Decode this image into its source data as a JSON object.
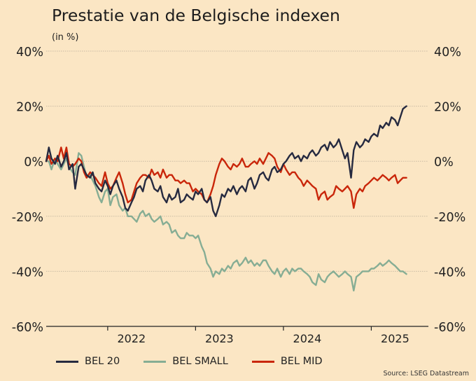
{
  "header": {
    "title": "Prestatie van de Belgische indexen",
    "subtitle": "(in %)"
  },
  "source": "Source: LSEG Datastream",
  "colors": {
    "background": "#fbe6c4",
    "grid": "#c9bba3",
    "bel20": "#262a40",
    "belsmall": "#86ad94",
    "belmid": "#c9260a"
  },
  "chart_data": {
    "type": "line",
    "title": "Prestatie van de Belgische indexen",
    "ylabel": "(in %)",
    "xlabel": "",
    "ylim": [
      -60,
      40
    ],
    "xlim": [
      2021.3,
      2025.65
    ],
    "yticks": [
      40,
      20,
      0,
      -20,
      -40,
      -60
    ],
    "ytick_labels": [
      "40%",
      "20%",
      "0%",
      "-20%",
      "-40%",
      "-60%"
    ],
    "xticks": [
      2022,
      2023,
      2024,
      2025
    ],
    "xtick_labels": [
      "2022",
      "2023",
      "2024",
      "2025"
    ],
    "grid": true,
    "legend_position": "bottom",
    "series": [
      {
        "name": "BEL 20",
        "color_key": "bel20",
        "x": [
          2021.3,
          2021.33,
          2021.36,
          2021.4,
          2021.43,
          2021.47,
          2021.5,
          2021.53,
          2021.56,
          2021.6,
          2021.63,
          2021.67,
          2021.7,
          2021.73,
          2021.76,
          2021.8,
          2021.83,
          2021.86,
          2021.9,
          2021.93,
          2021.97,
          2022.0,
          2022.03,
          2022.06,
          2022.1,
          2022.13,
          2022.17,
          2022.2,
          2022.23,
          2022.27,
          2022.3,
          2022.33,
          2022.37,
          2022.4,
          2022.43,
          2022.47,
          2022.5,
          2022.53,
          2022.57,
          2022.6,
          2022.63,
          2022.67,
          2022.7,
          2022.73,
          2022.77,
          2022.8,
          2022.83,
          2022.87,
          2022.9,
          2022.93,
          2022.97,
          2023.0,
          2023.03,
          2023.07,
          2023.1,
          2023.13,
          2023.17,
          2023.2,
          2023.23,
          2023.27,
          2023.3,
          2023.33,
          2023.37,
          2023.4,
          2023.43,
          2023.47,
          2023.5,
          2023.53,
          2023.57,
          2023.6,
          2023.63,
          2023.67,
          2023.7,
          2023.73,
          2023.77,
          2023.8,
          2023.83,
          2023.87,
          2023.9,
          2023.93,
          2023.97,
          2024.0,
          2024.03,
          2024.07,
          2024.1,
          2024.13,
          2024.17,
          2024.2,
          2024.23,
          2024.27,
          2024.3,
          2024.33,
          2024.37,
          2024.4,
          2024.43,
          2024.47,
          2024.5,
          2024.53,
          2024.57,
          2024.6,
          2024.63,
          2024.67,
          2024.7,
          2024.73,
          2024.77,
          2024.8,
          2024.83,
          2024.87,
          2024.9,
          2024.93,
          2024.97,
          2025.0,
          2025.03,
          2025.07,
          2025.1,
          2025.13,
          2025.17,
          2025.2,
          2025.23,
          2025.27,
          2025.3,
          2025.33,
          2025.36,
          2025.4
        ],
        "values": [
          0,
          5,
          1,
          -1,
          2,
          -2,
          0,
          3,
          -3,
          -1,
          -10,
          -2,
          -1,
          -3,
          -5,
          -6,
          -4,
          -8,
          -10,
          -11,
          -7,
          -9,
          -12,
          -9,
          -7,
          -10,
          -13,
          -17,
          -18,
          -15,
          -13,
          -10,
          -9,
          -11,
          -7,
          -5,
          -7,
          -10,
          -11,
          -9,
          -13,
          -15,
          -12,
          -14,
          -13,
          -10,
          -15,
          -14,
          -12,
          -13,
          -14,
          -11,
          -12,
          -10,
          -14,
          -15,
          -13,
          -18,
          -20,
          -16,
          -12,
          -13,
          -10,
          -11,
          -9,
          -12,
          -10,
          -9,
          -11,
          -7,
          -6,
          -10,
          -8,
          -5,
          -4,
          -6,
          -7,
          -3,
          -2,
          -4,
          -3,
          -1,
          0,
          2,
          3,
          1,
          2,
          0,
          2,
          1,
          3,
          4,
          2,
          3,
          5,
          6,
          4,
          7,
          5,
          6,
          8,
          4,
          1,
          3,
          -6,
          4,
          7,
          5,
          6,
          8,
          7,
          9,
          10,
          9,
          13,
          12,
          14,
          13,
          16,
          15,
          13,
          16,
          19,
          20
        ]
      },
      {
        "name": "BEL SMALL",
        "color_key": "belsmall",
        "x": [
          2021.3,
          2021.33,
          2021.36,
          2021.4,
          2021.43,
          2021.47,
          2021.5,
          2021.53,
          2021.56,
          2021.6,
          2021.63,
          2021.67,
          2021.7,
          2021.73,
          2021.76,
          2021.8,
          2021.83,
          2021.86,
          2021.9,
          2021.93,
          2021.97,
          2022.0,
          2022.03,
          2022.06,
          2022.1,
          2022.13,
          2022.17,
          2022.2,
          2022.23,
          2022.27,
          2022.3,
          2022.33,
          2022.37,
          2022.4,
          2022.43,
          2022.47,
          2022.5,
          2022.53,
          2022.57,
          2022.6,
          2022.63,
          2022.67,
          2022.7,
          2022.73,
          2022.77,
          2022.8,
          2022.83,
          2022.87,
          2022.9,
          2022.93,
          2022.97,
          2023.0,
          2023.03,
          2023.07,
          2023.1,
          2023.13,
          2023.17,
          2023.2,
          2023.23,
          2023.27,
          2023.3,
          2023.33,
          2023.37,
          2023.4,
          2023.43,
          2023.47,
          2023.5,
          2023.53,
          2023.57,
          2023.6,
          2023.63,
          2023.67,
          2023.7,
          2023.73,
          2023.77,
          2023.8,
          2023.83,
          2023.87,
          2023.9,
          2023.93,
          2023.97,
          2024.0,
          2024.03,
          2024.07,
          2024.1,
          2024.13,
          2024.17,
          2024.2,
          2024.23,
          2024.27,
          2024.3,
          2024.33,
          2024.37,
          2024.4,
          2024.43,
          2024.47,
          2024.5,
          2024.53,
          2024.57,
          2024.6,
          2024.63,
          2024.67,
          2024.7,
          2024.73,
          2024.77,
          2024.8,
          2024.83,
          2024.87,
          2024.9,
          2024.93,
          2024.97,
          2025.0,
          2025.03,
          2025.07,
          2025.1,
          2025.13,
          2025.17,
          2025.2,
          2025.23,
          2025.27,
          2025.3,
          2025.33,
          2025.36,
          2025.4
        ],
        "values": [
          0,
          0,
          -3,
          1,
          -1,
          -3,
          -1,
          1,
          -2,
          -4,
          -5,
          3,
          2,
          -2,
          -6,
          -5,
          -7,
          -9,
          -13,
          -15,
          -11,
          -10,
          -16,
          -13,
          -12,
          -16,
          -18,
          -17,
          -20,
          -20,
          -21,
          -22,
          -19,
          -18,
          -20,
          -19,
          -21,
          -22,
          -21,
          -20,
          -23,
          -22,
          -23,
          -26,
          -25,
          -27,
          -28,
          -28,
          -26,
          -27,
          -27,
          -28,
          -27,
          -31,
          -33,
          -37,
          -39,
          -42,
          -40,
          -41,
          -39,
          -40,
          -38,
          -39,
          -37,
          -36,
          -38,
          -37,
          -35,
          -37,
          -36,
          -38,
          -37,
          -38,
          -36,
          -36,
          -38,
          -40,
          -41,
          -39,
          -42,
          -40,
          -39,
          -41,
          -39,
          -40,
          -39,
          -39,
          -40,
          -41,
          -42,
          -44,
          -45,
          -41,
          -43,
          -44,
          -42,
          -41,
          -40,
          -41,
          -42,
          -41,
          -40,
          -41,
          -42,
          -47,
          -42,
          -41,
          -40,
          -40,
          -40,
          -39,
          -39,
          -38,
          -37,
          -38,
          -37,
          -36,
          -37,
          -38,
          -39,
          -40,
          -40,
          -41
        ]
      },
      {
        "name": "BEL MID",
        "color_key": "belmid",
        "x": [
          2021.3,
          2021.33,
          2021.36,
          2021.4,
          2021.43,
          2021.47,
          2021.5,
          2021.53,
          2021.56,
          2021.6,
          2021.63,
          2021.67,
          2021.7,
          2021.73,
          2021.76,
          2021.8,
          2021.83,
          2021.86,
          2021.9,
          2021.93,
          2021.97,
          2022.0,
          2022.03,
          2022.06,
          2022.1,
          2022.13,
          2022.17,
          2022.2,
          2022.23,
          2022.27,
          2022.3,
          2022.33,
          2022.37,
          2022.4,
          2022.43,
          2022.47,
          2022.5,
          2022.53,
          2022.57,
          2022.6,
          2022.63,
          2022.67,
          2022.7,
          2022.73,
          2022.77,
          2022.8,
          2022.83,
          2022.87,
          2022.9,
          2022.93,
          2022.97,
          2023.0,
          2023.03,
          2023.07,
          2023.1,
          2023.13,
          2023.17,
          2023.2,
          2023.23,
          2023.27,
          2023.3,
          2023.33,
          2023.37,
          2023.4,
          2023.43,
          2023.47,
          2023.5,
          2023.53,
          2023.57,
          2023.6,
          2023.63,
          2023.67,
          2023.7,
          2023.73,
          2023.77,
          2023.8,
          2023.83,
          2023.87,
          2023.9,
          2023.93,
          2023.97,
          2024.0,
          2024.03,
          2024.07,
          2024.1,
          2024.13,
          2024.17,
          2024.2,
          2024.23,
          2024.27,
          2024.3,
          2024.33,
          2024.37,
          2024.4,
          2024.43,
          2024.47,
          2024.5,
          2024.53,
          2024.57,
          2024.6,
          2024.63,
          2024.67,
          2024.7,
          2024.73,
          2024.77,
          2024.8,
          2024.83,
          2024.87,
          2024.9,
          2024.93,
          2024.97,
          2025.0,
          2025.03,
          2025.07,
          2025.1,
          2025.13,
          2025.17,
          2025.2,
          2025.23,
          2025.27,
          2025.3,
          2025.33,
          2025.36,
          2025.4
        ],
        "values": [
          0,
          2,
          -1,
          1,
          0,
          5,
          1,
          5,
          -1,
          -2,
          -1,
          1,
          0,
          -4,
          -6,
          -4,
          -5,
          -6,
          -8,
          -9,
          -4,
          -8,
          -10,
          -9,
          -6,
          -4,
          -8,
          -12,
          -15,
          -14,
          -11,
          -8,
          -6,
          -5,
          -5,
          -6,
          -3,
          -5,
          -4,
          -6,
          -3,
          -6,
          -5,
          -5,
          -7,
          -7,
          -8,
          -7,
          -8,
          -8,
          -11,
          -10,
          -11,
          -12,
          -14,
          -15,
          -12,
          -9,
          -5,
          -1,
          1,
          0,
          -2,
          -3,
          -1,
          -2,
          -1,
          1,
          -2,
          -2,
          -1,
          0,
          -1,
          1,
          -1,
          1,
          3,
          2,
          1,
          -2,
          -4,
          -1,
          -3,
          -5,
          -4,
          -4,
          -6,
          -7,
          -9,
          -7,
          -8,
          -9,
          -10,
          -14,
          -12,
          -11,
          -14,
          -13,
          -12,
          -9,
          -10,
          -11,
          -10,
          -9,
          -11,
          -17,
          -12,
          -10,
          -11,
          -9,
          -8,
          -7,
          -6,
          -7,
          -6,
          -5,
          -6,
          -7,
          -6,
          -5,
          -8,
          -7,
          -6,
          -6
        ]
      }
    ]
  },
  "legend": {
    "items": [
      {
        "label": "BEL 20"
      },
      {
        "label": "BEL SMALL"
      },
      {
        "label": "BEL MID"
      }
    ]
  }
}
